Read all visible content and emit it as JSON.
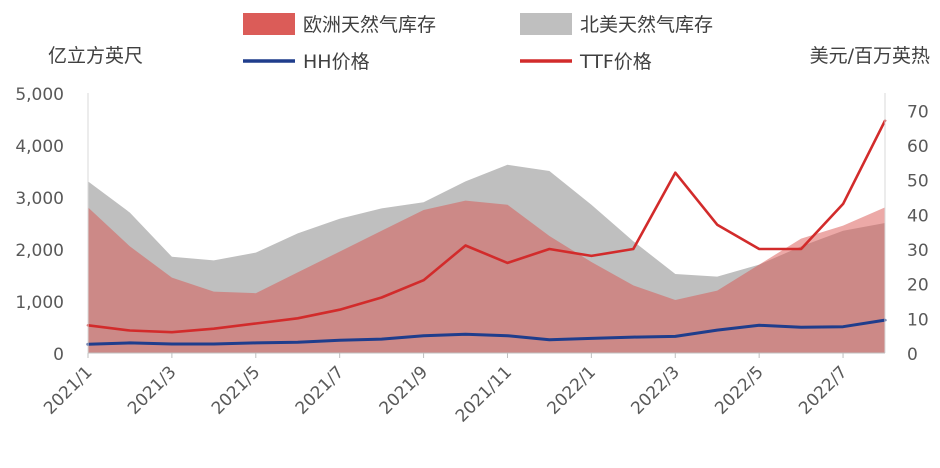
{
  "chart_data": {
    "type": "area",
    "x": [
      "2021/1",
      "2021/2",
      "2021/3",
      "2021/4",
      "2021/5",
      "2021/6",
      "2021/7",
      "2021/8",
      "2021/9",
      "2021/10",
      "2021/11",
      "2021/12",
      "2022/1",
      "2022/2",
      "2022/3",
      "2022/4",
      "2022/5",
      "2022/6",
      "2022/7",
      "2022/8"
    ],
    "x_tick_labels": [
      "2021/1",
      "2021/3",
      "2021/5",
      "2021/7",
      "2021/9",
      "2021/11",
      "2022/1",
      "2022/3",
      "2022/5",
      "2022/7"
    ],
    "left_axis": {
      "unit_label": "亿立方英尺",
      "ylim": [
        0,
        5000
      ],
      "ticks": [
        "0",
        "1,000",
        "2,000",
        "3,000",
        "4,000",
        "5,000"
      ]
    },
    "right_axis": {
      "unit_label": "美元/百万英热",
      "ylim": [
        0,
        75
      ],
      "ticks": [
        "0",
        "10",
        "20",
        "30",
        "40",
        "50",
        "60",
        "70"
      ]
    },
    "series": [
      {
        "name": "欧洲天然气库存",
        "kind": "area",
        "axis": "left",
        "color": "#d9534f",
        "values": [
          2800,
          2050,
          1450,
          1180,
          1150,
          1550,
          1950,
          2350,
          2750,
          2930,
          2850,
          2250,
          1750,
          1300,
          1020,
          1200,
          1700,
          2200,
          2450,
          2800
        ]
      },
      {
        "name": "北美天然气库存",
        "kind": "area",
        "axis": "left",
        "color": "#bfbfbf",
        "values": [
          3300,
          2700,
          1850,
          1780,
          1930,
          2300,
          2580,
          2780,
          2900,
          3300,
          3620,
          3500,
          2850,
          2150,
          1520,
          1470,
          1700,
          2050,
          2350,
          2500
        ]
      },
      {
        "name": "HH价格",
        "kind": "line",
        "axis": "right",
        "color": "#1f3d8c",
        "values": [
          2.5,
          2.9,
          2.6,
          2.6,
          2.9,
          3.1,
          3.7,
          4.0,
          5.0,
          5.4,
          5.0,
          3.8,
          4.2,
          4.6,
          4.8,
          6.6,
          8.0,
          7.4,
          7.6,
          9.5
        ]
      },
      {
        "name": "TTF价格",
        "kind": "line",
        "axis": "right",
        "color": "#d22b2b",
        "values": [
          8,
          6.5,
          6,
          7,
          8.5,
          10,
          12.5,
          16,
          21,
          31,
          26,
          30,
          28,
          30,
          52,
          37,
          30,
          30,
          43,
          67
        ]
      }
    ]
  }
}
